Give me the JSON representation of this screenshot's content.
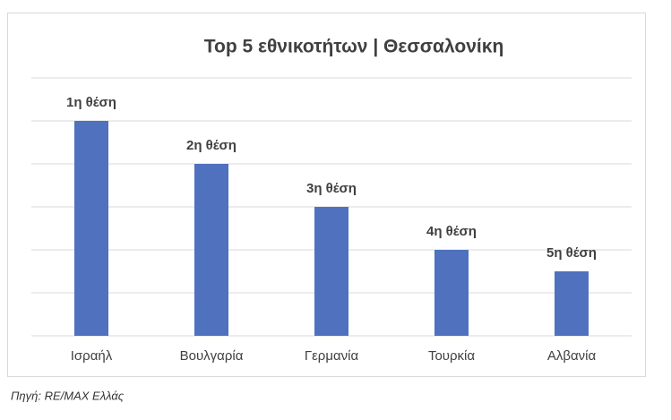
{
  "chart_data": {
    "type": "bar",
    "title": "Top 5 εθνικοτήτων | Θεσσαλονίκη",
    "categories": [
      "Ισραήλ",
      "Βουλγαρία",
      "Γερμανία",
      "Τουρκία",
      "Αλβανία"
    ],
    "values": [
      5,
      4,
      3,
      2,
      1.5
    ],
    "bar_labels": [
      "1η θέση",
      "2η θέση",
      "3η θέση",
      "4η θέση",
      "5η θέση"
    ],
    "color": "#4f71be",
    "ylim": [
      0,
      6
    ],
    "yticks": [
      0,
      1,
      2,
      3,
      4,
      5,
      6
    ],
    "grid": true
  },
  "source": "Πηγή: RE/MAX Ελλάς"
}
